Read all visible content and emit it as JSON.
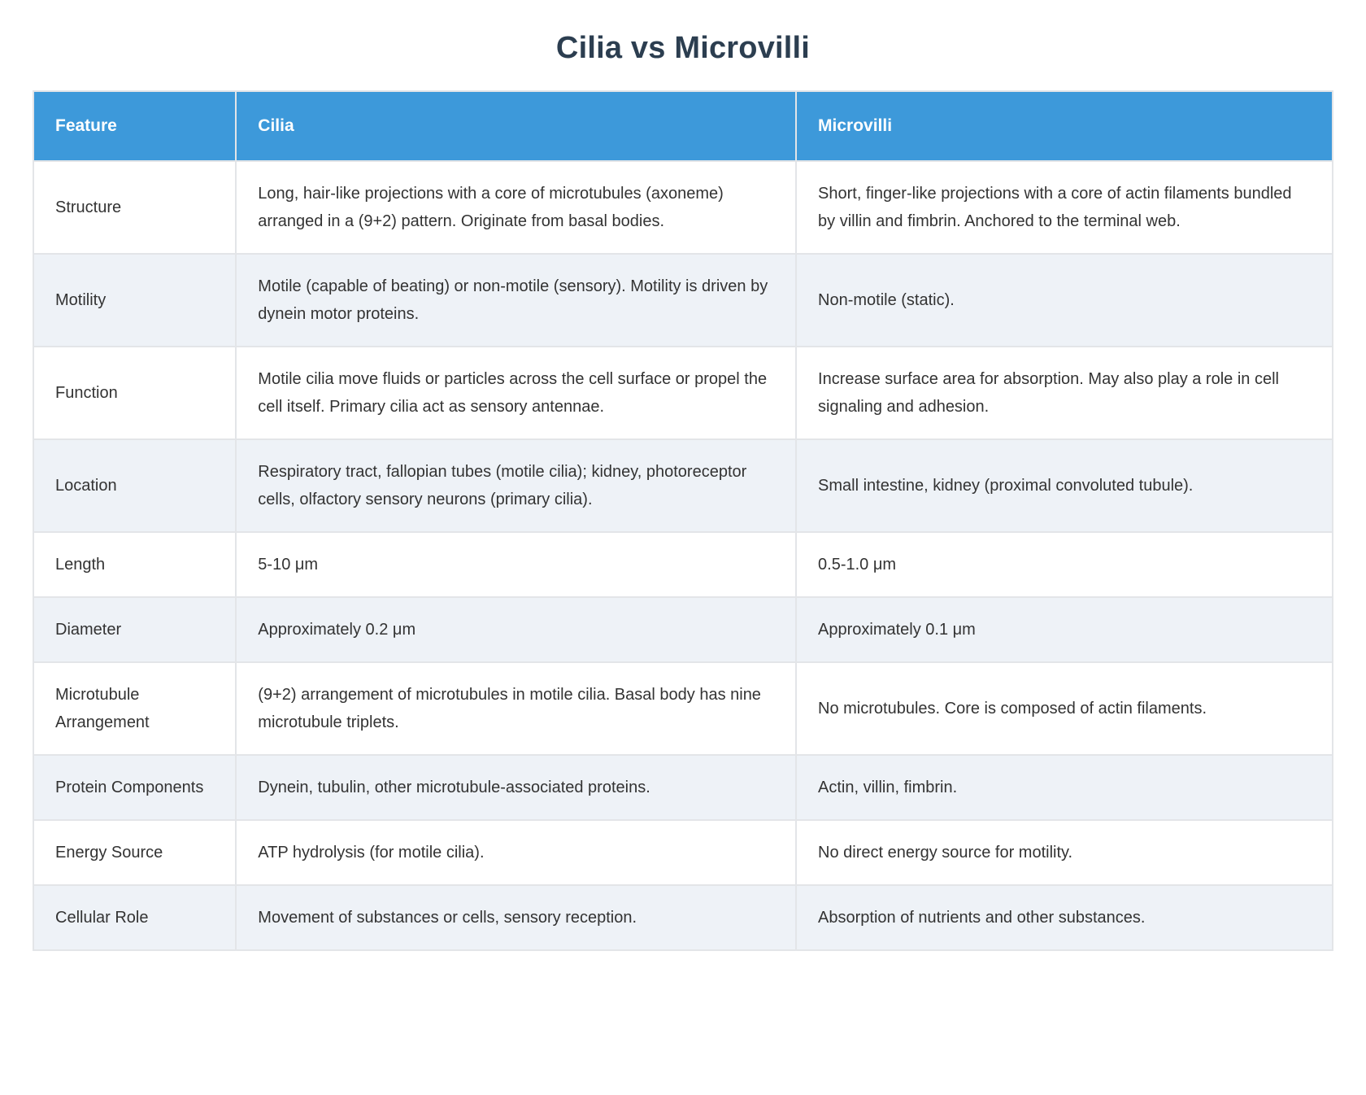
{
  "title": "Cilia vs Microvilli",
  "colors": {
    "header_bg": "#3d99da",
    "header_text": "#ffffff",
    "title_text": "#2c3e50",
    "row_alt_bg": "#eef2f7",
    "border": "#e3e5e8",
    "body_text": "#333333"
  },
  "table": {
    "columns": [
      "Feature",
      "Cilia",
      "Microvilli"
    ],
    "rows": [
      {
        "feature": "Structure",
        "cilia": "Long, hair-like projections with a core of microtubules (axoneme) arranged in a (9+2) pattern. Originate from basal bodies.",
        "microvilli": "Short, finger-like projections with a core of actin filaments bundled by villin and fimbrin. Anchored to the terminal web."
      },
      {
        "feature": "Motility",
        "cilia": "Motile (capable of beating) or non-motile (sensory). Motility is driven by dynein motor proteins.",
        "microvilli": "Non-motile (static)."
      },
      {
        "feature": "Function",
        "cilia": "Motile cilia move fluids or particles across the cell surface or propel the cell itself. Primary cilia act as sensory antennae.",
        "microvilli": "Increase surface area for absorption. May also play a role in cell signaling and adhesion."
      },
      {
        "feature": "Location",
        "cilia": "Respiratory tract, fallopian tubes (motile cilia); kidney, photoreceptor cells, olfactory sensory neurons (primary cilia).",
        "microvilli": "Small intestine, kidney (proximal convoluted tubule)."
      },
      {
        "feature": "Length",
        "cilia": "5-10 μm",
        "microvilli": "0.5-1.0 μm"
      },
      {
        "feature": "Diameter",
        "cilia": "Approximately 0.2 μm",
        "microvilli": "Approximately 0.1 μm"
      },
      {
        "feature": "Microtubule Arrangement",
        "cilia": "(9+2) arrangement of microtubules in motile cilia. Basal body has nine microtubule triplets.",
        "microvilli": "No microtubules. Core is composed of actin filaments."
      },
      {
        "feature": "Protein Components",
        "cilia": "Dynein, tubulin, other microtubule-associated proteins.",
        "microvilli": "Actin, villin, fimbrin."
      },
      {
        "feature": "Energy Source",
        "cilia": "ATP hydrolysis (for motile cilia).",
        "microvilli": "No direct energy source for motility."
      },
      {
        "feature": "Cellular Role",
        "cilia": "Movement of substances or cells, sensory reception.",
        "microvilli": "Absorption of nutrients and other substances."
      }
    ]
  }
}
